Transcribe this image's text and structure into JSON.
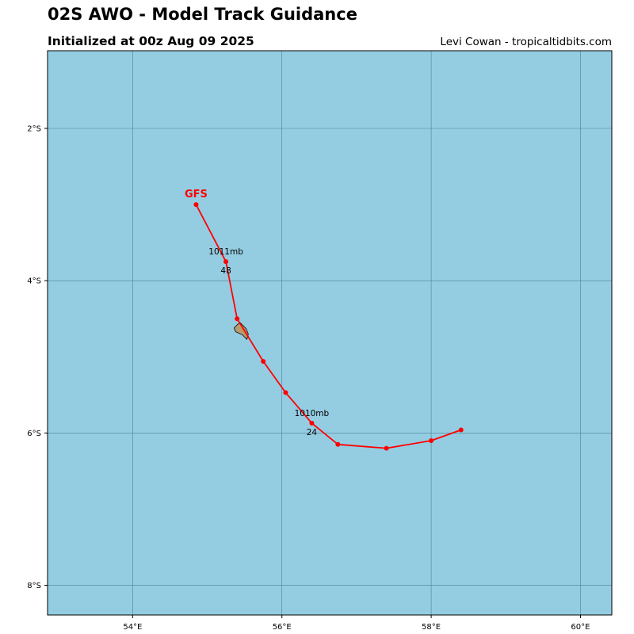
{
  "header": {
    "title": "02S AWO - Model Track Guidance",
    "subtitle": "Initialized at 00z Aug 09 2025",
    "credit": "Levi Cowan - tropicaltidbits.com"
  },
  "map": {
    "ocean_color": "#94cde2",
    "grid_color": "#4e7f8f",
    "land_color": "#b89b6c",
    "lon_range": [
      52.86,
      60.42
    ],
    "lat_range": [
      -8.39,
      -0.98
    ],
    "lat_ticks": [
      {
        "value": -2,
        "label": "2°S"
      },
      {
        "value": -4,
        "label": "4°S"
      },
      {
        "value": -6,
        "label": "6°S"
      },
      {
        "value": -8,
        "label": "8°S"
      }
    ],
    "lon_ticks": [
      {
        "value": 54,
        "label": "54°E"
      },
      {
        "value": 56,
        "label": "56°E"
      },
      {
        "value": 58,
        "label": "58°E"
      },
      {
        "value": 60,
        "label": "60°E"
      }
    ],
    "island": [
      [
        55.44,
        -4.55
      ],
      [
        55.52,
        -4.63
      ],
      [
        55.55,
        -4.7
      ],
      [
        55.53,
        -4.77
      ],
      [
        55.47,
        -4.71
      ],
      [
        55.38,
        -4.67
      ],
      [
        55.36,
        -4.62
      ],
      [
        55.4,
        -4.58
      ]
    ]
  },
  "track": {
    "model": "GFS",
    "color": "#ff0000",
    "points": [
      [
        58.4,
        -5.96
      ],
      [
        58.0,
        -6.1
      ],
      [
        57.4,
        -6.2
      ],
      [
        56.75,
        -6.15
      ],
      [
        56.4,
        -5.87
      ],
      [
        56.05,
        -5.47
      ],
      [
        55.75,
        -5.06
      ],
      [
        55.4,
        -4.5
      ],
      [
        55.25,
        -3.75
      ],
      [
        54.85,
        -3.0
      ]
    ],
    "annotations": [
      {
        "lon": 56.4,
        "lat": -5.87,
        "pressure": "1010mb",
        "hour": "24"
      },
      {
        "lon": 55.25,
        "lat": -3.75,
        "pressure": "1011mb",
        "hour": "48"
      }
    ]
  }
}
